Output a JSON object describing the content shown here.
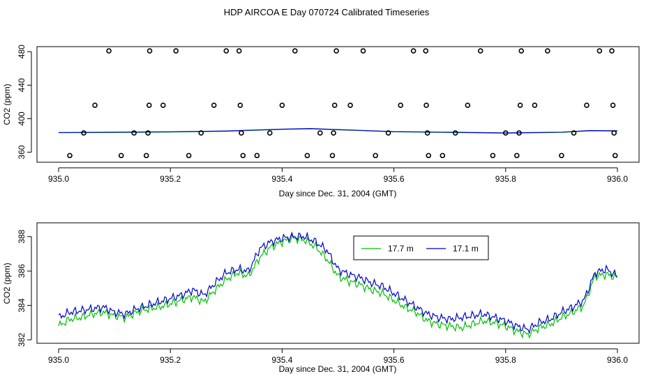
{
  "title": "HDP AIRCOA E  Day 070724  Calibrated Timeseries",
  "colors": {
    "series_a": "#00c000",
    "series_b": "#0000cc",
    "axis": "#000000"
  },
  "chart_data": [
    {
      "type": "scatter",
      "xlabel": "Day since Dec. 31, 2004 (GMT)",
      "ylabel": "CO2 (ppm)",
      "xlim": [
        935.0,
        936.0
      ],
      "ylim": [
        348,
        486
      ],
      "x_ticks": [
        "935.0",
        "935.2",
        "935.4",
        "935.6",
        "935.8",
        "936.0"
      ],
      "y_ticks": [
        "360",
        "400",
        "440",
        "480"
      ],
      "calibration_points": [
        {
          "x": 935.02,
          "y": 356
        },
        {
          "x": 935.045,
          "y": 383
        },
        {
          "x": 935.065,
          "y": 416
        },
        {
          "x": 935.09,
          "y": 481
        },
        {
          "x": 935.112,
          "y": 356
        },
        {
          "x": 935.135,
          "y": 383
        },
        {
          "x": 935.157,
          "y": 356
        },
        {
          "x": 935.16,
          "y": 383
        },
        {
          "x": 935.162,
          "y": 416
        },
        {
          "x": 935.163,
          "y": 481
        },
        {
          "x": 935.187,
          "y": 416
        },
        {
          "x": 935.21,
          "y": 481
        },
        {
          "x": 935.233,
          "y": 356
        },
        {
          "x": 935.255,
          "y": 383
        },
        {
          "x": 935.278,
          "y": 416
        },
        {
          "x": 935.3,
          "y": 481
        },
        {
          "x": 935.323,
          "y": 481
        },
        {
          "x": 935.325,
          "y": 416
        },
        {
          "x": 935.327,
          "y": 383
        },
        {
          "x": 935.33,
          "y": 356
        },
        {
          "x": 935.355,
          "y": 356
        },
        {
          "x": 935.378,
          "y": 383
        },
        {
          "x": 935.4,
          "y": 416
        },
        {
          "x": 935.423,
          "y": 481
        },
        {
          "x": 935.445,
          "y": 356
        },
        {
          "x": 935.468,
          "y": 383
        },
        {
          "x": 935.49,
          "y": 356
        },
        {
          "x": 935.492,
          "y": 383
        },
        {
          "x": 935.494,
          "y": 416
        },
        {
          "x": 935.497,
          "y": 481
        },
        {
          "x": 935.522,
          "y": 416
        },
        {
          "x": 935.545,
          "y": 481
        },
        {
          "x": 935.567,
          "y": 356
        },
        {
          "x": 935.59,
          "y": 383
        },
        {
          "x": 935.612,
          "y": 416
        },
        {
          "x": 935.635,
          "y": 481
        },
        {
          "x": 935.657,
          "y": 481
        },
        {
          "x": 935.658,
          "y": 416
        },
        {
          "x": 935.66,
          "y": 383
        },
        {
          "x": 935.662,
          "y": 356
        },
        {
          "x": 935.687,
          "y": 356
        },
        {
          "x": 935.71,
          "y": 383
        },
        {
          "x": 935.732,
          "y": 416
        },
        {
          "x": 935.755,
          "y": 481
        },
        {
          "x": 935.777,
          "y": 356
        },
        {
          "x": 935.8,
          "y": 383
        },
        {
          "x": 935.82,
          "y": 356
        },
        {
          "x": 935.824,
          "y": 383
        },
        {
          "x": 935.826,
          "y": 416
        },
        {
          "x": 935.828,
          "y": 481
        },
        {
          "x": 935.852,
          "y": 416
        },
        {
          "x": 935.875,
          "y": 481
        },
        {
          "x": 935.9,
          "y": 356
        },
        {
          "x": 935.922,
          "y": 383
        },
        {
          "x": 935.945,
          "y": 416
        },
        {
          "x": 935.968,
          "y": 481
        },
        {
          "x": 935.99,
          "y": 481
        },
        {
          "x": 935.992,
          "y": 416
        },
        {
          "x": 935.994,
          "y": 383
        },
        {
          "x": 935.996,
          "y": 356
        }
      ],
      "baseline": {
        "x": [
          935.0,
          935.1,
          935.2,
          935.3,
          935.4,
          935.45,
          935.5,
          935.6,
          935.7,
          935.8,
          935.9,
          935.95,
          936.0
        ],
        "y": [
          383.5,
          383.8,
          384.4,
          385.3,
          387.5,
          388.2,
          387.0,
          384.6,
          383.8,
          383.0,
          383.9,
          385.8,
          385.5
        ]
      }
    },
    {
      "type": "line",
      "xlabel": "Day since Dec. 31, 2004 (GMT)",
      "ylabel": "CO2 (ppm)",
      "xlim": [
        935.0,
        936.0
      ],
      "ylim": [
        381.8,
        388.8
      ],
      "x_ticks": [
        "935.0",
        "935.2",
        "935.4",
        "935.6",
        "935.8",
        "936.0"
      ],
      "y_ticks": [
        "382",
        "384",
        "386",
        "388"
      ],
      "legend": [
        "17.7 m",
        "17.1 m"
      ],
      "x": [
        935.0,
        935.02,
        935.04,
        935.06,
        935.08,
        935.1,
        935.12,
        935.14,
        935.16,
        935.18,
        935.2,
        935.22,
        935.24,
        935.26,
        935.28,
        935.3,
        935.32,
        935.34,
        935.36,
        935.38,
        935.4,
        935.42,
        935.44,
        935.46,
        935.48,
        935.5,
        935.52,
        935.54,
        935.56,
        935.58,
        935.6,
        935.62,
        935.64,
        935.66,
        935.68,
        935.7,
        935.72,
        935.74,
        935.76,
        935.78,
        935.8,
        935.82,
        935.84,
        935.86,
        935.88,
        935.9,
        935.92,
        935.94,
        935.96,
        935.98,
        936.0
      ],
      "series": [
        {
          "name": "17.7 m",
          "values": [
            382.8,
            383.2,
            383.3,
            383.5,
            383.6,
            383.4,
            383.3,
            383.6,
            383.8,
            383.9,
            384.1,
            384.3,
            384.5,
            384.2,
            384.9,
            385.5,
            385.9,
            385.7,
            386.8,
            387.4,
            387.7,
            387.9,
            387.8,
            387.4,
            386.7,
            385.7,
            385.4,
            385.2,
            384.9,
            384.7,
            384.3,
            383.9,
            383.6,
            383.1,
            382.9,
            382.8,
            382.7,
            382.9,
            383.1,
            383.0,
            382.8,
            382.5,
            382.3,
            382.7,
            382.9,
            383.3,
            383.6,
            384.0,
            385.7,
            385.8,
            385.6
          ]
        },
        {
          "name": "17.1 m",
          "values": [
            383.3,
            383.6,
            383.7,
            383.8,
            383.9,
            383.6,
            383.5,
            383.8,
            384.0,
            384.2,
            384.4,
            384.6,
            384.9,
            384.6,
            385.3,
            385.9,
            386.1,
            386.0,
            387.3,
            387.7,
            387.9,
            388.0,
            388.0,
            387.7,
            387.2,
            386.1,
            385.8,
            385.6,
            385.3,
            385.1,
            384.7,
            384.3,
            383.9,
            383.5,
            383.3,
            383.2,
            383.3,
            383.4,
            383.5,
            383.3,
            383.1,
            382.8,
            382.6,
            383.0,
            383.2,
            383.6,
            383.9,
            384.3,
            385.9,
            386.1,
            385.7
          ]
        }
      ]
    }
  ]
}
